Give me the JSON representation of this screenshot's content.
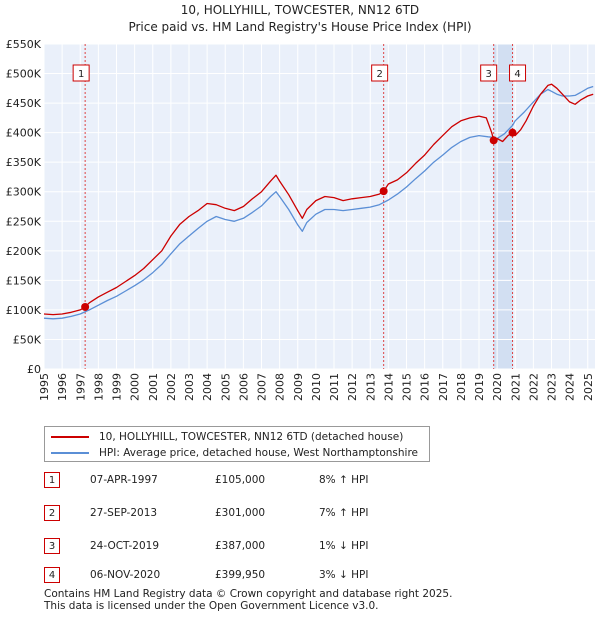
{
  "chart_data": {
    "type": "line",
    "title": "10, HOLLYHILL, TOWCESTER, NN12 6TD",
    "subtitle": "Price paid vs. HM Land Registry's House Price Index (HPI)",
    "xlabel": "",
    "ylabel": "",
    "xlim": [
      1995,
      2025.4
    ],
    "ylim": [
      0,
      550000
    ],
    "x_ticks": [
      "1995",
      "1996",
      "1997",
      "1998",
      "1999",
      "2000",
      "2001",
      "2002",
      "2003",
      "2004",
      "2005",
      "2006",
      "2007",
      "2008",
      "2009",
      "2010",
      "2011",
      "2012",
      "2013",
      "2014",
      "2015",
      "2016",
      "2017",
      "2018",
      "2019",
      "2020",
      "2021",
      "2022",
      "2023",
      "2024",
      "2025"
    ],
    "y_ticks": [
      {
        "value": 0,
        "label": "£0"
      },
      {
        "value": 50000,
        "label": "£50K"
      },
      {
        "value": 100000,
        "label": "£100K"
      },
      {
        "value": 150000,
        "label": "£150K"
      },
      {
        "value": 200000,
        "label": "£200K"
      },
      {
        "value": 250000,
        "label": "£250K"
      },
      {
        "value": 300000,
        "label": "£300K"
      },
      {
        "value": 350000,
        "label": "£350K"
      },
      {
        "value": 400000,
        "label": "£400K"
      },
      {
        "value": 450000,
        "label": "£450K"
      },
      {
        "value": 500000,
        "label": "£500K"
      },
      {
        "value": 550000,
        "label": "£550K"
      }
    ],
    "grid": true,
    "legend_position": "below-chart",
    "series": [
      {
        "name": "10, HOLLYHILL, TOWCESTER, NN12 6TD (detached house)",
        "color": "#cc0000",
        "x": [
          1995.0,
          1995.5,
          1996.0,
          1996.5,
          1997.0,
          1997.27,
          1997.5,
          1998.0,
          1998.5,
          1999.0,
          1999.5,
          2000.0,
          2000.5,
          2001.0,
          2001.5,
          2002.0,
          2002.5,
          2003.0,
          2003.5,
          2004.0,
          2004.5,
          2005.0,
          2005.5,
          2006.0,
          2006.5,
          2007.0,
          2007.5,
          2007.8,
          2008.0,
          2008.5,
          2009.0,
          2009.25,
          2009.5,
          2010.0,
          2010.5,
          2011.0,
          2011.5,
          2012.0,
          2012.5,
          2013.0,
          2013.5,
          2013.74,
          2014.0,
          2014.5,
          2015.0,
          2015.5,
          2016.0,
          2016.5,
          2017.0,
          2017.5,
          2018.0,
          2018.5,
          2019.0,
          2019.4,
          2019.7,
          2019.81,
          2020.0,
          2020.3,
          2020.6,
          2020.85,
          2021.0,
          2021.3,
          2021.6,
          2022.0,
          2022.4,
          2022.8,
          2023.0,
          2023.3,
          2023.6,
          2024.0,
          2024.3,
          2024.6,
          2025.0,
          2025.3
        ],
        "y": [
          93000,
          92000,
          93000,
          96000,
          100000,
          105000,
          112000,
          122000,
          130000,
          138000,
          148000,
          158000,
          170000,
          185000,
          200000,
          225000,
          245000,
          258000,
          268000,
          280000,
          278000,
          272000,
          268000,
          275000,
          288000,
          300000,
          318000,
          328000,
          318000,
          295000,
          268000,
          255000,
          270000,
          285000,
          292000,
          290000,
          285000,
          288000,
          290000,
          292000,
          296000,
          301000,
          313000,
          320000,
          332000,
          348000,
          362000,
          380000,
          395000,
          410000,
          420000,
          425000,
          428000,
          425000,
          400000,
          387000,
          390000,
          385000,
          395000,
          399950,
          395000,
          405000,
          420000,
          445000,
          465000,
          480000,
          482000,
          475000,
          465000,
          452000,
          448000,
          455000,
          462000,
          465000
        ]
      },
      {
        "name": "HPI: Average price, detached house, West Northamptonshire",
        "color": "#5b8fd6",
        "x": [
          1995.0,
          1995.5,
          1996.0,
          1996.5,
          1997.0,
          1997.5,
          1998.0,
          1998.5,
          1999.0,
          1999.5,
          2000.0,
          2000.5,
          2001.0,
          2001.5,
          2002.0,
          2002.5,
          2003.0,
          2003.5,
          2004.0,
          2004.5,
          2005.0,
          2005.5,
          2006.0,
          2006.5,
          2007.0,
          2007.5,
          2007.8,
          2008.0,
          2008.5,
          2009.0,
          2009.25,
          2009.5,
          2010.0,
          2010.5,
          2011.0,
          2011.5,
          2012.0,
          2012.5,
          2013.0,
          2013.5,
          2014.0,
          2014.5,
          2015.0,
          2015.5,
          2016.0,
          2016.5,
          2017.0,
          2017.5,
          2018.0,
          2018.5,
          2019.0,
          2019.5,
          2019.81,
          2020.0,
          2020.4,
          2020.85,
          2021.0,
          2021.5,
          2022.0,
          2022.4,
          2022.8,
          2023.0,
          2023.3,
          2023.6,
          2024.0,
          2024.3,
          2024.6,
          2025.0,
          2025.3
        ],
        "y": [
          86000,
          85000,
          86000,
          89000,
          93000,
          100000,
          108000,
          116000,
          123000,
          132000,
          141000,
          151000,
          163000,
          177000,
          195000,
          212000,
          225000,
          238000,
          250000,
          258000,
          253000,
          250000,
          255000,
          265000,
          276000,
          292000,
          300000,
          292000,
          270000,
          244000,
          233000,
          248000,
          262000,
          270000,
          270000,
          268000,
          270000,
          272000,
          274000,
          278000,
          286000,
          296000,
          308000,
          322000,
          335000,
          350000,
          362000,
          375000,
          385000,
          392000,
          395000,
          393000,
          392000,
          390000,
          398000,
          412000,
          420000,
          435000,
          452000,
          465000,
          473000,
          470000,
          465000,
          462000,
          462000,
          463000,
          468000,
          475000,
          478000
        ]
      }
    ],
    "sale_markers": [
      {
        "label": "1",
        "x": 1997.27,
        "y": 105000
      },
      {
        "label": "2",
        "x": 2013.74,
        "y": 301000
      },
      {
        "label": "3",
        "x": 2019.81,
        "y": 387000
      },
      {
        "label": "4",
        "x": 2020.85,
        "y": 399950
      }
    ],
    "shaded_span": [
      2019.81,
      2020.85
    ]
  },
  "legend": {
    "property_label": "10, HOLLYHILL, TOWCESTER, NN12 6TD (detached house)",
    "hpi_label": "HPI: Average price, detached house, West Northamptonshire",
    "property_color": "#cc0000",
    "hpi_color": "#5b8fd6"
  },
  "sales": [
    {
      "num": "1",
      "date": "07-APR-1997",
      "price": "£105,000",
      "hpi": "8% ↑ HPI"
    },
    {
      "num": "2",
      "date": "27-SEP-2013",
      "price": "£301,000",
      "hpi": "7% ↑ HPI"
    },
    {
      "num": "3",
      "date": "24-OCT-2019",
      "price": "£387,000",
      "hpi": "1% ↓ HPI"
    },
    {
      "num": "4",
      "date": "06-NOV-2020",
      "price": "£399,950",
      "hpi": "3% ↓ HPI"
    }
  ],
  "footer": {
    "line1": "Contains HM Land Registry data © Crown copyright and database right 2025.",
    "line2": "This data is licensed under the Open Government Licence v3.0."
  }
}
